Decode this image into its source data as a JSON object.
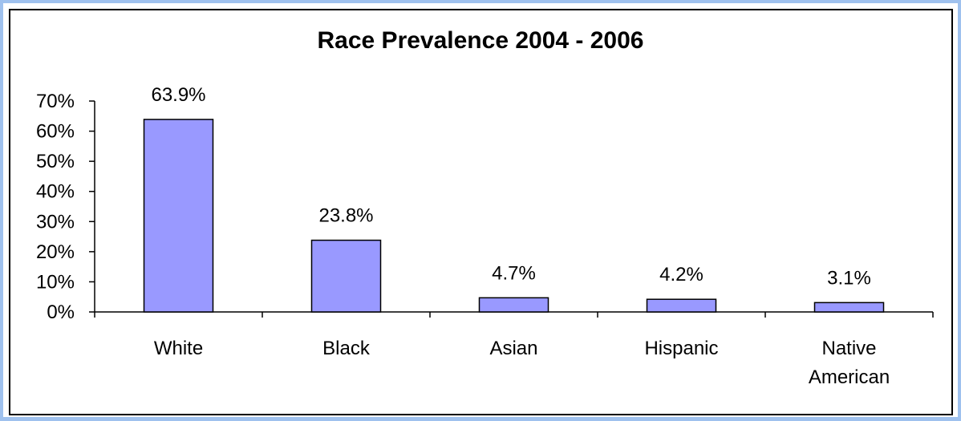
{
  "chart_data": {
    "type": "bar",
    "title": "Race Prevalence 2004 - 2006",
    "xlabel": "",
    "ylabel": "",
    "categories": [
      [
        "White"
      ],
      [
        "Black"
      ],
      [
        "Asian"
      ],
      [
        "Hispanic"
      ],
      [
        "Native",
        "American"
      ]
    ],
    "values": [
      63.9,
      23.8,
      4.7,
      4.2,
      3.1
    ],
    "data_labels": [
      "63.9%",
      "23.8%",
      "4.7%",
      "4.2%",
      "3.1%"
    ],
    "ylim": [
      0,
      70
    ],
    "y_ticks": [
      0,
      10,
      20,
      30,
      40,
      50,
      60,
      70
    ],
    "y_tick_labels": [
      "0%",
      "10%",
      "20%",
      "30%",
      "40%",
      "50%",
      "60%",
      "70%"
    ],
    "grid": false,
    "legend": "none",
    "colors": {
      "bar_fill": "#9999ff",
      "bar_stroke": "#000000",
      "frame_border": "#9fc1ee"
    }
  }
}
